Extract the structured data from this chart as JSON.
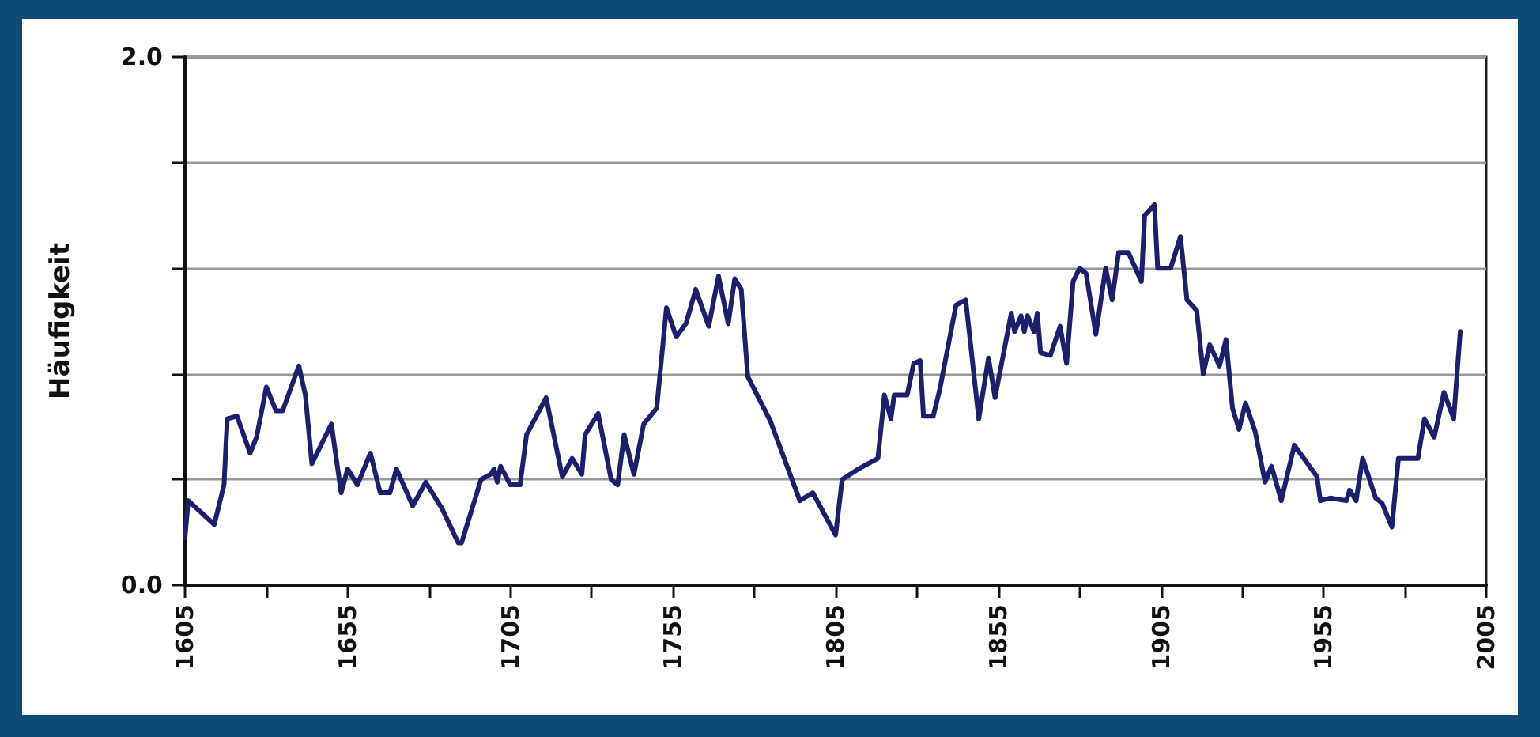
{
  "chart_data": {
    "type": "line",
    "ylabel": "Häufigkeit",
    "x": [
      1605,
      1606,
      1614,
      1617,
      1618,
      1621,
      1625,
      1627,
      1630,
      1633,
      1635,
      1640,
      1642,
      1644,
      1650,
      1653,
      1655,
      1658,
      1662,
      1665,
      1668,
      1670,
      1675,
      1679,
      1684,
      1689,
      1690,
      1696,
      1699,
      1700,
      1701,
      1702,
      1705,
      1708,
      1710,
      1716,
      1721,
      1724,
      1727,
      1728,
      1732,
      1736,
      1738,
      1740,
      1743,
      1746,
      1750,
      1753,
      1756,
      1759,
      1762,
      1766,
      1769,
      1772,
      1774,
      1776,
      1778,
      1785,
      1794,
      1798,
      1805,
      1807,
      1812,
      1818,
      1820,
      1822,
      1823,
      1827,
      1829,
      1831,
      1832,
      1835,
      1837,
      1842,
      1845,
      1849,
      1852,
      1854,
      1859,
      1860,
      1862,
      1863,
      1864,
      1866,
      1867,
      1868,
      1871,
      1874,
      1876,
      1878,
      1880,
      1882,
      1885,
      1888,
      1890,
      1892,
      1895,
      1899,
      1900,
      1903,
      1904,
      1908,
      1911,
      1913,
      1916,
      1918,
      1920,
      1923,
      1925,
      1927,
      1929,
      1931,
      1934,
      1937,
      1939,
      1942,
      1946,
      1953,
      1954,
      1957,
      1962,
      1963,
      1965,
      1967,
      1971,
      1973,
      1976,
      1978,
      1984,
      1986,
      1989,
      1992,
      1995,
      1997
    ],
    "series": [
      {
        "color": "#1b1f6e",
        "values": [
          0.18,
          0.32,
          0.23,
          0.38,
          0.63,
          0.64,
          0.5,
          0.56,
          0.75,
          0.66,
          0.66,
          0.83,
          0.72,
          0.46,
          0.61,
          0.35,
          0.44,
          0.38,
          0.5,
          0.35,
          0.35,
          0.44,
          0.3,
          0.39,
          0.29,
          0.16,
          0.16,
          0.4,
          0.42,
          0.44,
          0.39,
          0.45,
          0.38,
          0.38,
          0.57,
          0.71,
          0.41,
          0.48,
          0.42,
          0.57,
          0.65,
          0.4,
          0.38,
          0.57,
          0.42,
          0.61,
          0.67,
          1.05,
          0.94,
          0.99,
          1.12,
          0.98,
          1.17,
          0.99,
          1.16,
          1.12,
          0.79,
          0.62,
          0.32,
          0.35,
          0.19,
          0.4,
          0.44,
          0.48,
          0.72,
          0.63,
          0.72,
          0.72,
          0.84,
          0.85,
          0.64,
          0.64,
          0.74,
          1.06,
          1.08,
          0.63,
          0.86,
          0.71,
          1.03,
          0.96,
          1.02,
          0.96,
          1.02,
          0.96,
          1.03,
          0.88,
          0.87,
          0.98,
          0.84,
          1.15,
          1.2,
          1.18,
          0.95,
          1.2,
          1.08,
          1.26,
          1.26,
          1.15,
          1.4,
          1.44,
          1.2,
          1.2,
          1.32,
          1.08,
          1.04,
          0.8,
          0.91,
          0.83,
          0.93,
          0.67,
          0.59,
          0.69,
          0.58,
          0.39,
          0.45,
          0.32,
          0.53,
          0.41,
          0.32,
          0.33,
          0.32,
          0.36,
          0.32,
          0.48,
          0.33,
          0.31,
          0.22,
          0.48,
          0.48,
          0.63,
          0.56,
          0.73,
          0.63,
          0.96
        ]
      }
    ],
    "xlim": [
      1605,
      2005
    ],
    "xticks": [
      1605,
      {
        "value": 1630,
        "label": null
      },
      1655,
      {
        "value": 1680,
        "label": null
      },
      1705,
      {
        "value": 1730,
        "label": null
      },
      1755,
      {
        "value": 1780,
        "label": null
      },
      1805,
      {
        "value": 1830,
        "label": null
      },
      1855,
      {
        "value": 1880,
        "label": null
      },
      1905,
      {
        "value": 1930,
        "label": null
      },
      1955,
      {
        "value": 1980,
        "label": null
      },
      2005
    ],
    "ylim": [
      0,
      2
    ],
    "yticks": [
      {
        "value": 0,
        "label": "0.0"
      },
      {
        "value": 0.4,
        "label": null
      },
      {
        "value": 0.8,
        "label": null
      },
      {
        "value": 1.2,
        "label": null
      },
      {
        "value": 1.6,
        "label": null
      },
      {
        "value": 2,
        "label": "2.0"
      }
    ],
    "grid": "y",
    "marker": "none",
    "line_style": "solid"
  }
}
